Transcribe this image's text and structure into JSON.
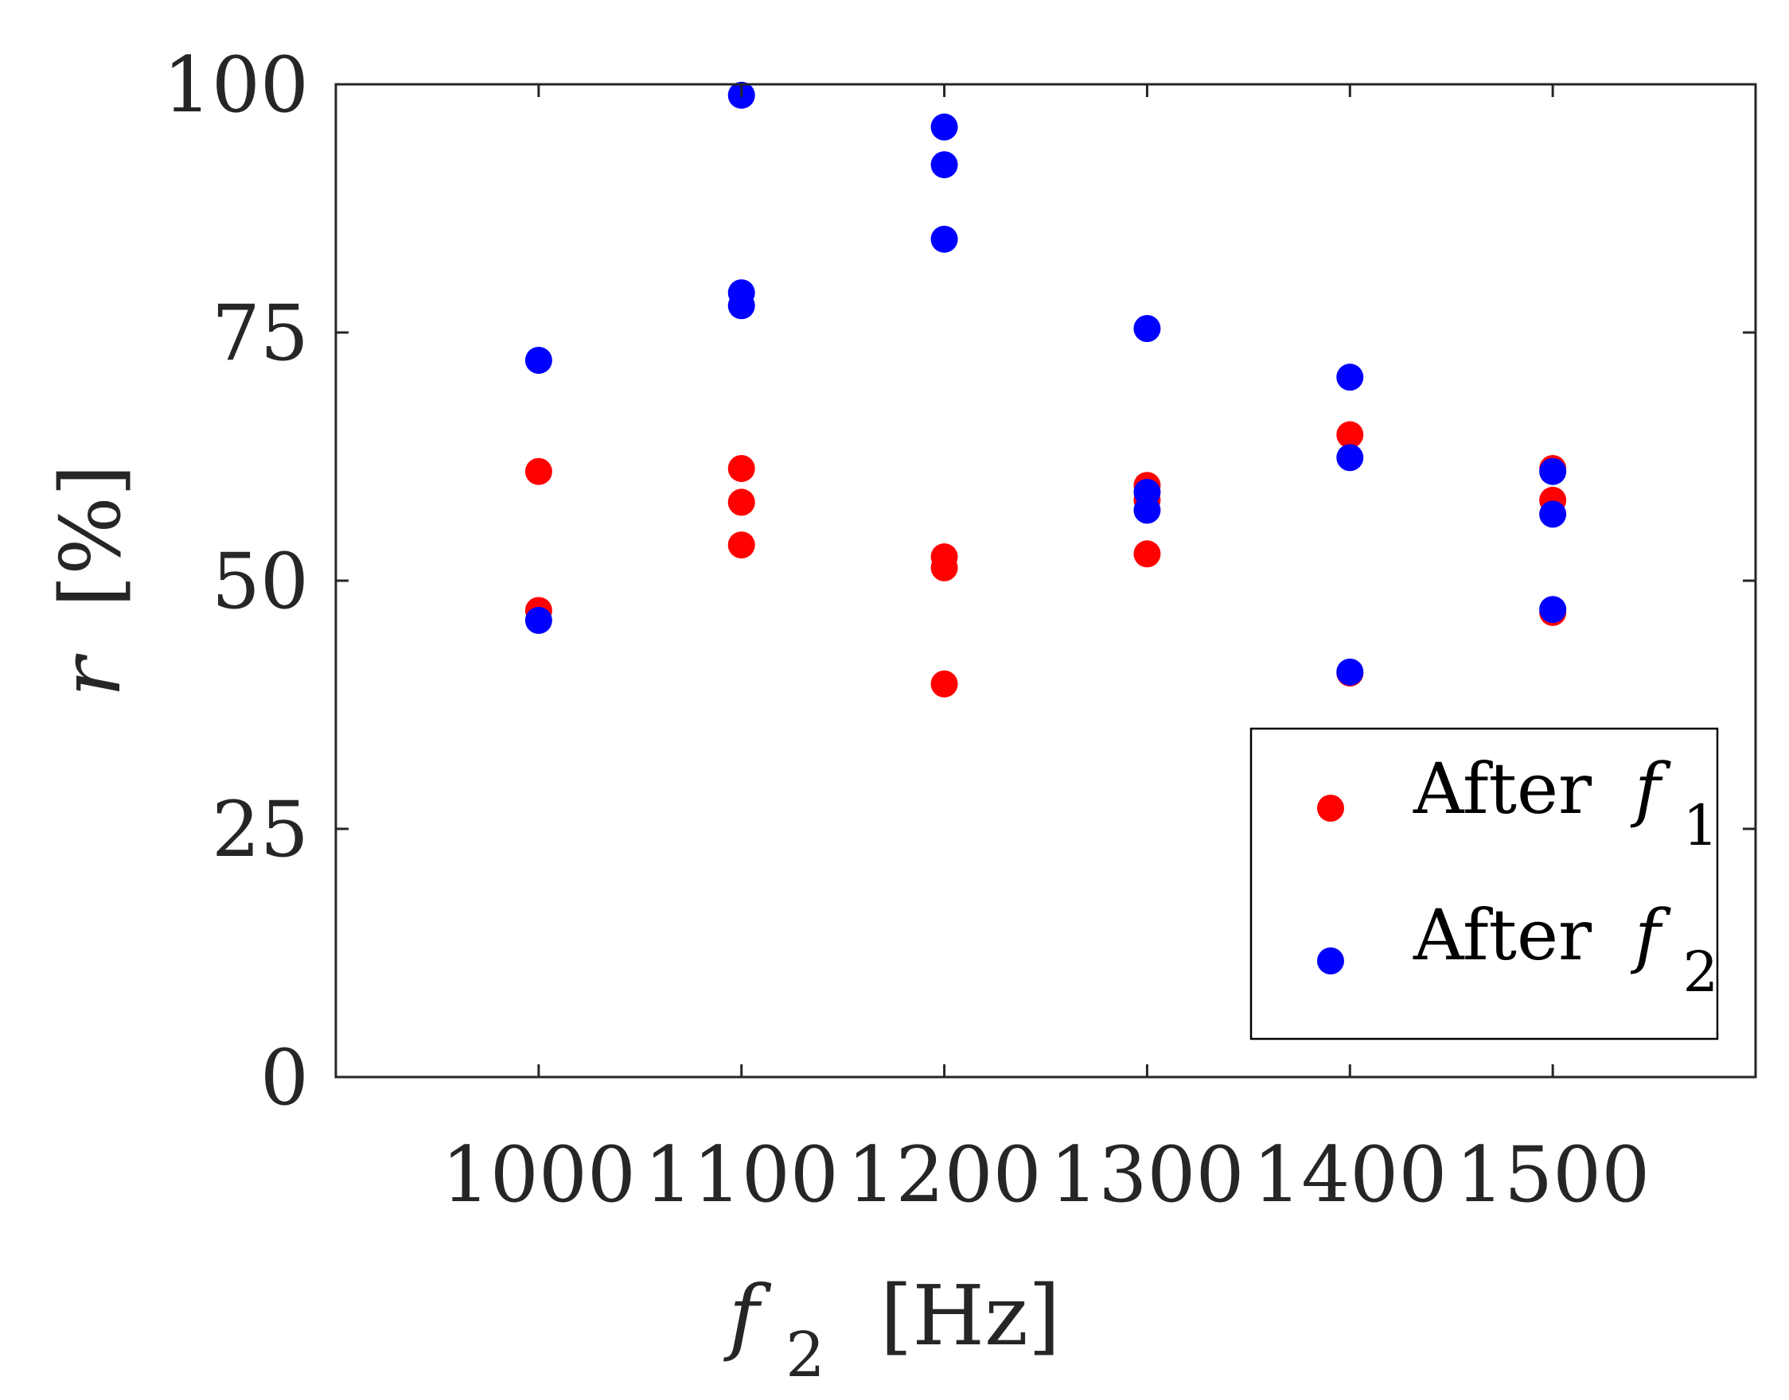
{
  "chart_data": {
    "type": "scatter",
    "title": "",
    "xlabel": {
      "symbol": "f",
      "subscript": "2",
      "unit": "[Hz]"
    },
    "ylabel": {
      "symbol": "r",
      "unit": "[%]"
    },
    "xlim": [
      900,
      1600
    ],
    "ylim": [
      0,
      100
    ],
    "xticks": [
      1000,
      1100,
      1200,
      1300,
      1400,
      1500
    ],
    "xtick_labels": [
      "1000",
      "1100",
      "1200",
      "1300",
      "1400",
      "1500"
    ],
    "yticks": [
      0,
      25,
      50,
      75,
      100
    ],
    "ytick_labels": [
      "0",
      "25",
      "50",
      "75",
      "100"
    ],
    "grid": false,
    "legend_position": "bottom-right",
    "series": [
      {
        "name": "After f1",
        "label_text": "After",
        "label_symbol": "f",
        "label_subscript": "1",
        "color": "#ff0000",
        "points": [
          {
            "x": 1000,
            "y": 61
          },
          {
            "x": 1000,
            "y": 47
          },
          {
            "x": 1100,
            "y": 61.3
          },
          {
            "x": 1100,
            "y": 57.9
          },
          {
            "x": 1100,
            "y": 53.6
          },
          {
            "x": 1200,
            "y": 52.4
          },
          {
            "x": 1200,
            "y": 51.3
          },
          {
            "x": 1200,
            "y": 39.6
          },
          {
            "x": 1300,
            "y": 59.6
          },
          {
            "x": 1300,
            "y": 58.1
          },
          {
            "x": 1300,
            "y": 52.7
          },
          {
            "x": 1400,
            "y": 64.7
          },
          {
            "x": 1400,
            "y": 40.7
          },
          {
            "x": 1500,
            "y": 61.3
          },
          {
            "x": 1500,
            "y": 58.1
          },
          {
            "x": 1500,
            "y": 46.8
          }
        ]
      },
      {
        "name": "After f2",
        "label_text": "After",
        "label_symbol": "f",
        "label_subscript": "2",
        "color": "#0000ff",
        "points": [
          {
            "x": 1000,
            "y": 72.2
          },
          {
            "x": 1000,
            "y": 46
          },
          {
            "x": 1100,
            "y": 98.9
          },
          {
            "x": 1100,
            "y": 79
          },
          {
            "x": 1100,
            "y": 77.7
          },
          {
            "x": 1200,
            "y": 95.7
          },
          {
            "x": 1200,
            "y": 91.9
          },
          {
            "x": 1200,
            "y": 84.4
          },
          {
            "x": 1300,
            "y": 75.4
          },
          {
            "x": 1300,
            "y": 58.9
          },
          {
            "x": 1300,
            "y": 57.1
          },
          {
            "x": 1400,
            "y": 70.5
          },
          {
            "x": 1400,
            "y": 62.4
          },
          {
            "x": 1400,
            "y": 40.8
          },
          {
            "x": 1500,
            "y": 61
          },
          {
            "x": 1500,
            "y": 56.7
          },
          {
            "x": 1500,
            "y": 47.1
          }
        ]
      }
    ]
  }
}
